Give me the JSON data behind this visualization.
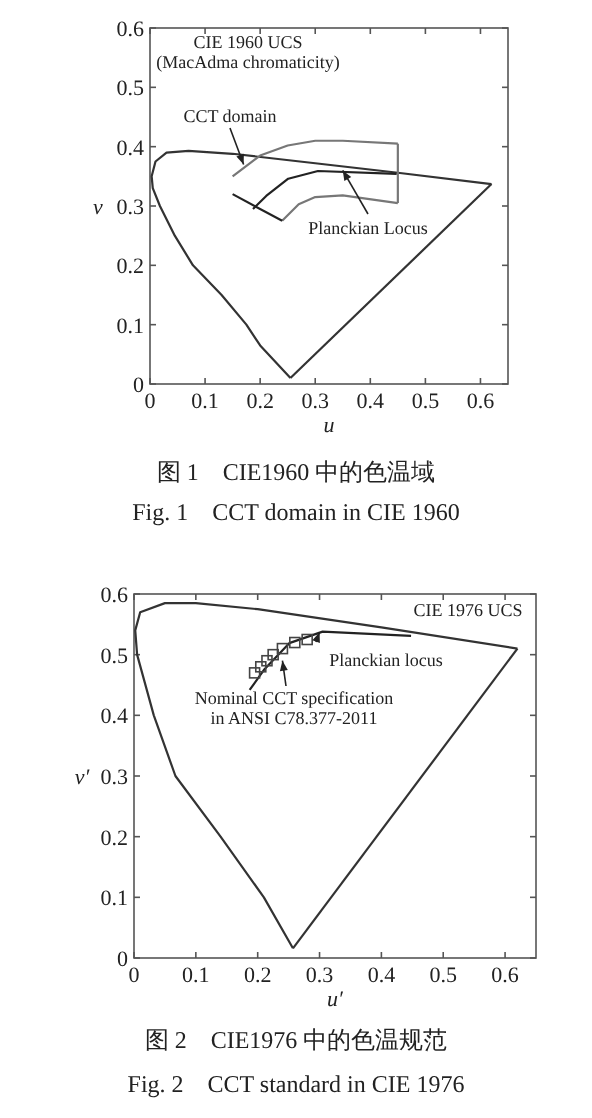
{
  "chart_data": [
    {
      "type": "line",
      "title": "图 1　CIE1960 中的色温域",
      "subtitle": "Fig. 1　CCT domain in CIE 1960",
      "xlabel": "u",
      "ylabel": "v",
      "xlim": [
        0,
        0.65
      ],
      "ylim": [
        0,
        0.6
      ],
      "xticks": [
        0,
        0.1,
        0.2,
        0.3,
        0.4,
        0.5,
        0.6
      ],
      "yticks": [
        0,
        0.1,
        0.2,
        0.3,
        0.4,
        0.5,
        0.6
      ],
      "series": [
        {
          "color": "#333333",
          "x": [
            0.255,
            0.2,
            0.175,
            0.13,
            0.078,
            0.045,
            0.018,
            0.005,
            0.003,
            0.01,
            0.03,
            0.07,
            0.15,
            0.3,
            0.45,
            0.62
          ],
          "values": [
            0.01,
            0.065,
            0.1,
            0.15,
            0.2,
            0.25,
            0.3,
            0.33,
            0.35,
            0.375,
            0.39,
            0.393,
            0.388,
            0.372,
            0.356,
            0.337
          ]
        },
        {
          "color": "#333333",
          "x": [
            0.255,
            0.62
          ],
          "values": [
            0.01,
            0.337
          ]
        },
        {
          "color": "#222222",
          "x": [
            0.187,
            0.211,
            0.251,
            0.305,
            0.448
          ],
          "values": [
            0.295,
            0.317,
            0.346,
            0.359,
            0.354
          ]
        },
        {
          "color": "#777777",
          "x": [
            0.15,
            0.2,
            0.25,
            0.3,
            0.35,
            0.45
          ],
          "values": [
            0.35,
            0.385,
            0.402,
            0.41,
            0.41,
            0.405
          ]
        },
        {
          "color": "#777777",
          "x": [
            0.24,
            0.27,
            0.3,
            0.35,
            0.45
          ],
          "values": [
            0.275,
            0.303,
            0.315,
            0.318,
            0.305
          ]
        },
        {
          "color": "#222222",
          "x": [
            0.15,
            0.24
          ],
          "values": [
            0.32,
            0.275
          ]
        },
        {
          "color": "#777777",
          "x": [
            0.45,
            0.45
          ],
          "values": [
            0.305,
            0.405
          ]
        }
      ],
      "annotations": [
        "CIE 1960 UCS\n(MacAdma chromaticity)",
        {
          "text": "CCT domain",
          "x": 0.17,
          "y": 0.37
        },
        {
          "text": "Planckian Locus",
          "x": 0.35,
          "y": 0.36
        }
      ]
    },
    {
      "type": "line",
      "title": "图 2　CIE1976 中的色温规范",
      "subtitle": "Fig. 2　CCT standard in CIE 1976",
      "xlabel": "u′",
      "ylabel": "v′",
      "xlim": [
        0,
        0.65
      ],
      "ylim": [
        0,
        0.6
      ],
      "xticks": [
        0,
        0.1,
        0.2,
        0.3,
        0.4,
        0.5,
        0.6
      ],
      "yticks": [
        0,
        0.1,
        0.2,
        0.3,
        0.4,
        0.5,
        0.6
      ],
      "series": [
        {
          "color": "#333333",
          "x": [
            0.257,
            0.21,
            0.14,
            0.067,
            0.032,
            0.005,
            0.002,
            0.01,
            0.05,
            0.1,
            0.2,
            0.4,
            0.62
          ],
          "values": [
            0.016,
            0.1,
            0.2,
            0.3,
            0.4,
            0.5,
            0.54,
            0.57,
            0.585,
            0.585,
            0.575,
            0.545,
            0.51
          ]
        },
        {
          "color": "#333333",
          "x": [
            0.257,
            0.62
          ],
          "values": [
            0.016,
            0.51
          ]
        },
        {
          "color": "#222222",
          "x": [
            0.187,
            0.211,
            0.251,
            0.305,
            0.448
          ],
          "values": [
            0.442,
            0.476,
            0.519,
            0.538,
            0.531
          ]
        },
        {
          "type": "scatter",
          "marker": "square",
          "color": "#444444",
          "x": [
            0.195,
            0.205,
            0.215,
            0.225,
            0.24,
            0.26,
            0.28
          ],
          "values": [
            0.47,
            0.48,
            0.49,
            0.5,
            0.51,
            0.52,
            0.525
          ]
        }
      ],
      "annotations": [
        "CIE 1976 UCS",
        {
          "text": "Planckian locus",
          "x": 0.3,
          "y": 0.537
        },
        {
          "text": "Nominal CCT specification\nin ANSI C78.377-2011",
          "x": 0.24,
          "y": 0.49
        }
      ]
    }
  ]
}
